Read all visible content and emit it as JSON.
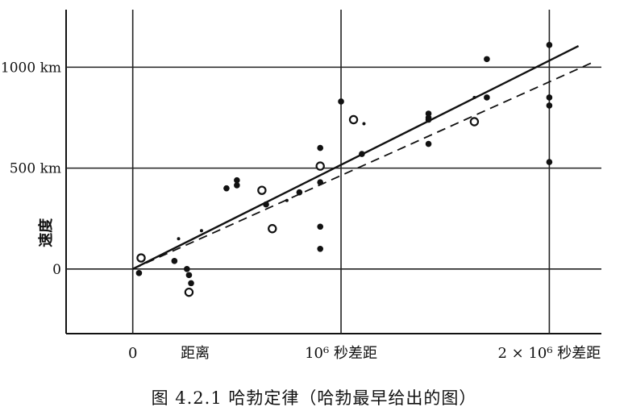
{
  "chart_data": {
    "type": "scatter",
    "title": "",
    "xlabel": "",
    "ylabel": "速度",
    "xlim": [
      -0.32,
      2.25
    ],
    "ylim": [
      -320,
      1285
    ],
    "grid": true,
    "x_tick_labels": [
      {
        "x": 0,
        "text": "0"
      },
      {
        "x": 0.3,
        "text": "距离"
      },
      {
        "x": 1,
        "text": "10⁶ 秒差距"
      },
      {
        "x": 2,
        "text": "2 × 10⁶ 秒差距"
      }
    ],
    "y_tick_labels": [
      {
        "y": 1000,
        "text": "+1000 km"
      },
      {
        "y": 500,
        "text": "500 km"
      },
      {
        "y": 0,
        "text": "0"
      }
    ],
    "series": [
      {
        "marker": "filled",
        "points": [
          [
            0.03,
            -20
          ],
          [
            0.2,
            40
          ],
          [
            0.26,
            0
          ],
          [
            0.27,
            -30
          ],
          [
            0.28,
            -70
          ],
          [
            0.45,
            400
          ],
          [
            0.5,
            440
          ],
          [
            0.5,
            415
          ],
          [
            0.64,
            320
          ],
          [
            0.8,
            380
          ],
          [
            0.9,
            600
          ],
          [
            0.9,
            430
          ],
          [
            0.9,
            210
          ],
          [
            0.9,
            100
          ],
          [
            1.0,
            830
          ],
          [
            1.1,
            570
          ],
          [
            1.42,
            620
          ],
          [
            1.42,
            770
          ],
          [
            1.42,
            740
          ],
          [
            1.42,
            750
          ],
          [
            1.7,
            850
          ],
          [
            1.7,
            1040
          ],
          [
            2.0,
            1110
          ],
          [
            2.0,
            850
          ],
          [
            2.0,
            810
          ],
          [
            2.0,
            530
          ]
        ]
      },
      {
        "marker": "open",
        "points": [
          [
            0.04,
            55
          ],
          [
            0.27,
            -115
          ],
          [
            0.62,
            390
          ],
          [
            0.67,
            200
          ],
          [
            0.9,
            510
          ],
          [
            1.06,
            740
          ],
          [
            1.64,
            730
          ]
        ]
      },
      {
        "marker": "small",
        "points": [
          [
            0.22,
            150
          ],
          [
            0.33,
            190
          ],
          [
            0.74,
            340
          ],
          [
            1.11,
            720
          ],
          [
            1.64,
            850
          ]
        ]
      }
    ],
    "fit_lines": [
      {
        "style": "solid",
        "points": [
          [
            0,
            0
          ],
          [
            2.14,
            1105
          ]
        ]
      },
      {
        "style": "dashed",
        "points": [
          [
            0,
            0
          ],
          [
            2.2,
            1020
          ]
        ]
      }
    ]
  },
  "caption": "图 4.2.1 哈勃定律（哈勃最早给出的图）"
}
